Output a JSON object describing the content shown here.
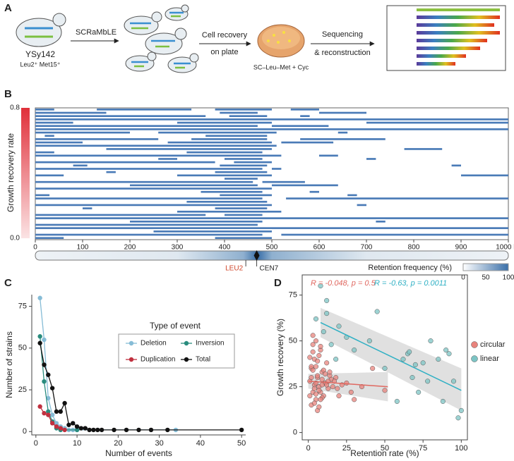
{
  "panel_labels": [
    "A",
    "B",
    "C",
    "D"
  ],
  "diagram": {
    "strain": "YSy142",
    "markers": "Leu2⁺ Met15⁺",
    "step1": "SCRaMbLE",
    "step2": [
      "Cell recovery",
      "on plate"
    ],
    "medium": "SC–Leu–Met + Cyc",
    "step3": [
      "Sequencing",
      "& reconstruction"
    ]
  },
  "chart_data": [
    {
      "type": "segments",
      "ylabel": "Growth recovery rate",
      "colorbar_lim": [
        0,
        0.8
      ],
      "colorbar_ticks": [
        {
          "value": 0,
          "label": "0.0"
        },
        {
          "value": 0.8,
          "label": "0.8"
        }
      ],
      "xlim": [
        0,
        1000
      ],
      "xticks": [
        0,
        100,
        200,
        300,
        400,
        500,
        600,
        700,
        800,
        900,
        {
          "value": 1000,
          "label": "1000 kb"
        }
      ],
      "color": "#4a7bb7",
      "rows": [
        [
          [
            0,
            40
          ],
          [
            130,
            330
          ],
          [
            380,
            500
          ],
          [
            540,
            600
          ]
        ],
        [
          [
            0,
            150
          ],
          [
            390,
            470
          ],
          [
            600,
            700
          ]
        ],
        [
          [
            0,
            360
          ],
          [
            410,
            490
          ],
          [
            560,
            580
          ]
        ],
        [
          [
            0,
            1000
          ]
        ],
        [
          [
            0,
            80
          ],
          [
            300,
            500
          ],
          [
            700,
            1000
          ]
        ],
        [
          [
            0,
            470
          ],
          [
            500,
            620
          ]
        ],
        [
          [
            0,
            1000
          ]
        ],
        [
          [
            0,
            200
          ],
          [
            260,
            510
          ],
          [
            640,
            660
          ]
        ],
        [
          [
            20,
            40
          ],
          [
            360,
            490
          ]
        ],
        [
          [
            0,
            260
          ],
          [
            330,
            490
          ],
          [
            560,
            740
          ]
        ],
        [
          [
            0,
            100
          ],
          [
            280,
            500
          ],
          [
            520,
            630
          ]
        ],
        [
          [
            0,
            510
          ]
        ],
        [
          [
            150,
            500
          ],
          [
            780,
            860
          ]
        ],
        [
          [
            0,
            40
          ],
          [
            320,
            480
          ]
        ],
        [
          [
            0,
            520
          ],
          [
            600,
            640
          ]
        ],
        [
          [
            260,
            300
          ],
          [
            400,
            480
          ],
          [
            700,
            720
          ]
        ],
        [
          [
            0,
            380
          ],
          [
            420,
            500
          ]
        ],
        [
          [
            80,
            110
          ],
          [
            390,
            490
          ],
          [
            880,
            900
          ]
        ],
        [
          [
            0,
            480
          ],
          [
            500,
            520
          ]
        ],
        [
          [
            150,
            170
          ],
          [
            380,
            490
          ]
        ],
        [
          [
            0,
            60
          ],
          [
            300,
            500
          ],
          [
            900,
            1000
          ]
        ],
        [
          [
            400,
            470
          ]
        ],
        [
          [
            0,
            460
          ],
          [
            480,
            570
          ]
        ],
        [
          [
            200,
            470
          ],
          [
            500,
            640
          ]
        ],
        [
          [
            0,
            500
          ]
        ],
        [
          [
            350,
            480
          ],
          [
            580,
            600
          ]
        ],
        [
          [
            0,
            30
          ],
          [
            390,
            500
          ],
          [
            660,
            680
          ]
        ],
        [
          [
            0,
            480
          ],
          [
            530,
            1000
          ]
        ],
        [
          [
            320,
            490
          ]
        ],
        [
          [
            0,
            500
          ],
          [
            680,
            700
          ]
        ],
        [
          [
            100,
            120
          ],
          [
            380,
            490
          ]
        ],
        [
          [
            300,
            520
          ]
        ],
        [
          [
            0,
            360
          ],
          [
            400,
            480
          ]
        ],
        [
          [
            0,
            1000
          ]
        ],
        [
          [
            200,
            480
          ],
          [
            720,
            740
          ]
        ],
        [
          [
            0,
            470
          ]
        ],
        [
          [
            0,
            1000
          ]
        ],
        [
          [
            250,
            500
          ]
        ],
        [
          [
            0,
            480
          ],
          [
            520,
            1000
          ]
        ],
        [
          [
            0,
            60
          ],
          [
            380,
            500
          ]
        ]
      ],
      "markers": [
        {
          "label": "LEU2",
          "position": 445,
          "color": "#d0452a"
        },
        {
          "label": "CEN7",
          "position": 468,
          "color": "#222222"
        }
      ],
      "retention_label": "Retention frequency (%)",
      "retention_lim": [
        0,
        100
      ],
      "retention_ticks": [
        0,
        50,
        100
      ],
      "retention_color": "#3a6fa8"
    },
    {
      "type": "line",
      "xlabel": "Number of events",
      "ylabel": "Number of strains",
      "legend_title": "Type of event",
      "xlim": [
        -1,
        51
      ],
      "xticks": [
        0,
        10,
        20,
        30,
        40,
        50
      ],
      "ylim": [
        -2,
        82
      ],
      "yticks": [
        0,
        25,
        50,
        75
      ],
      "series": [
        {
          "name": "Deletion",
          "color": "#86bcd6",
          "x": [
            1,
            2,
            3,
            4,
            5,
            6,
            7,
            8,
            9,
            10,
            34
          ],
          "values": [
            80,
            55,
            20,
            10,
            5,
            3,
            2,
            1,
            1,
            1,
            1
          ]
        },
        {
          "name": "Inversion",
          "color": "#2a8c7e",
          "x": [
            1,
            2,
            3,
            4,
            5,
            6,
            10
          ],
          "values": [
            57,
            30,
            12,
            6,
            2,
            1,
            1
          ]
        },
        {
          "name": "Duplication",
          "color": "#c0303f",
          "x": [
            1,
            2,
            3,
            4,
            5,
            6,
            7
          ],
          "values": [
            15,
            11,
            10,
            5,
            3,
            2,
            1
          ]
        },
        {
          "name": "Total",
          "color": "#111111",
          "x": [
            1,
            2,
            3,
            4,
            5,
            6,
            7,
            8,
            9,
            10,
            11,
            12,
            13,
            14,
            15,
            16,
            19,
            22,
            25,
            28,
            32,
            50
          ],
          "values": [
            53,
            40,
            34,
            26,
            12,
            12,
            17,
            4,
            5,
            3,
            2,
            2,
            1,
            1,
            1,
            1,
            1,
            1,
            1,
            1,
            1,
            1
          ]
        }
      ]
    },
    {
      "type": "scatter",
      "xlabel": "Retention rate (%)",
      "ylabel": "Growth recovery (%)",
      "legend": "right",
      "xlim": [
        -4,
        104
      ],
      "xticks": [
        0,
        25,
        50,
        75,
        100
      ],
      "ylim": [
        -4,
        86
      ],
      "yticks": [
        0,
        25,
        50,
        75
      ],
      "series": [
        {
          "name": "circular",
          "color": "#e8837c",
          "annotation": "R = -0.048, p = 0.5",
          "x": [
            1,
            2,
            3,
            4,
            5,
            6,
            7,
            8,
            9,
            10,
            11,
            12,
            13,
            14,
            15,
            2,
            3,
            4,
            5,
            6,
            7,
            8,
            9,
            10,
            12,
            1,
            2,
            3,
            4,
            5,
            6,
            7,
            8,
            9,
            11,
            13,
            16,
            18,
            20,
            22,
            25,
            28,
            3,
            5,
            7,
            2,
            4,
            6,
            8,
            1,
            3,
            5,
            9,
            30,
            35,
            42,
            50,
            14,
            17,
            19
          ],
          "values": [
            28,
            35,
            22,
            40,
            18,
            30,
            25,
            45,
            33,
            20,
            27,
            38,
            24,
            31,
            29,
            15,
            48,
            26,
            36,
            12,
            42,
            22,
            29,
            34,
            26,
            20,
            30,
            44,
            16,
            27,
            39,
            23,
            47,
            19,
            32,
            28,
            25,
            30,
            20,
            26,
            27,
            22,
            53,
            50,
            14,
            36,
            24,
            31,
            18,
            41,
            34,
            21,
            26,
            18,
            25,
            35,
            23,
            33,
            28,
            24
          ],
          "fit": {
            "x": [
              0,
              52
            ],
            "values": [
              28,
              25
            ],
            "lower": [
              24,
              17
            ],
            "upper": [
              32,
              33
            ]
          }
        },
        {
          "name": "linear",
          "color": "#7cc4c4",
          "annotation": "R = -0.63, p = 0.0011",
          "x": [
            8,
            10,
            12,
            15,
            18,
            20,
            25,
            40,
            45,
            58,
            62,
            65,
            66,
            68,
            70,
            72,
            75,
            78,
            80,
            85,
            88,
            90,
            92,
            95,
            98,
            100,
            5,
            12,
            30,
            50
          ],
          "values": [
            80,
            55,
            65,
            48,
            40,
            58,
            52,
            50,
            66,
            17,
            40,
            43,
            44,
            30,
            37,
            22,
            38,
            28,
            50,
            40,
            17,
            45,
            43,
            28,
            8,
            12,
            62,
            72,
            45,
            35
          ],
          "fit": {
            "x": [
              8,
              100
            ],
            "values": [
              60,
              23
            ],
            "lower": [
              52,
              12
            ],
            "upper": [
              68,
              35
            ]
          }
        }
      ]
    }
  ]
}
